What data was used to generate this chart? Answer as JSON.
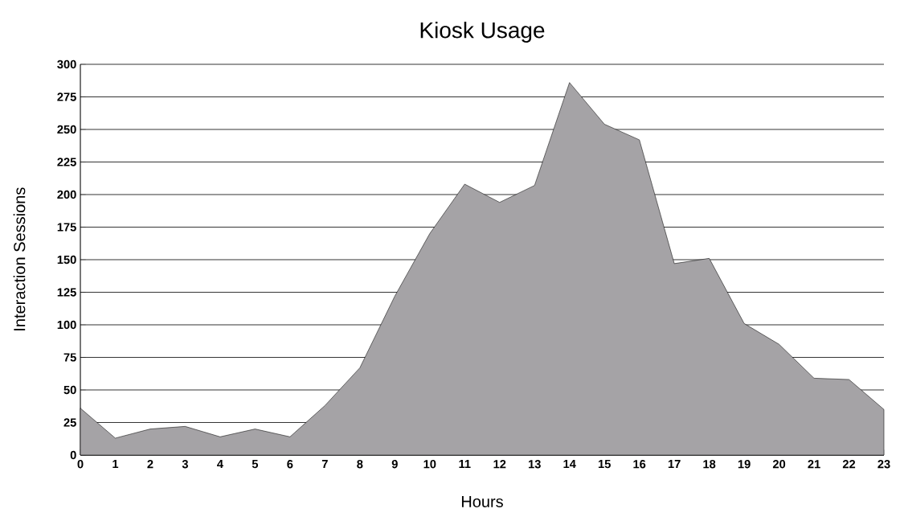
{
  "chart_data": {
    "type": "area",
    "title": "Kiosk Usage",
    "xlabel": "Hours",
    "ylabel": "Interaction Sessions",
    "x": [
      0,
      1,
      2,
      3,
      4,
      5,
      6,
      7,
      8,
      9,
      10,
      11,
      12,
      13,
      14,
      15,
      16,
      17,
      18,
      19,
      20,
      21,
      22,
      23
    ],
    "values": [
      36,
      13,
      20,
      22,
      14,
      20,
      14,
      38,
      67,
      122,
      170,
      208,
      194,
      207,
      286,
      254,
      242,
      147,
      151,
      101,
      85,
      59,
      58,
      35
    ],
    "color": "#a5a3a6",
    "xlim": [
      0,
      23
    ],
    "xticks": [
      0,
      1,
      2,
      3,
      4,
      5,
      6,
      7,
      8,
      9,
      10,
      11,
      12,
      13,
      14,
      15,
      16,
      17,
      18,
      19,
      20,
      21,
      22,
      23
    ],
    "ylim": [
      0,
      300
    ],
    "yticks": [
      0,
      25,
      50,
      75,
      100,
      125,
      150,
      175,
      200,
      225,
      250,
      275,
      300
    ],
    "grid": "y"
  }
}
